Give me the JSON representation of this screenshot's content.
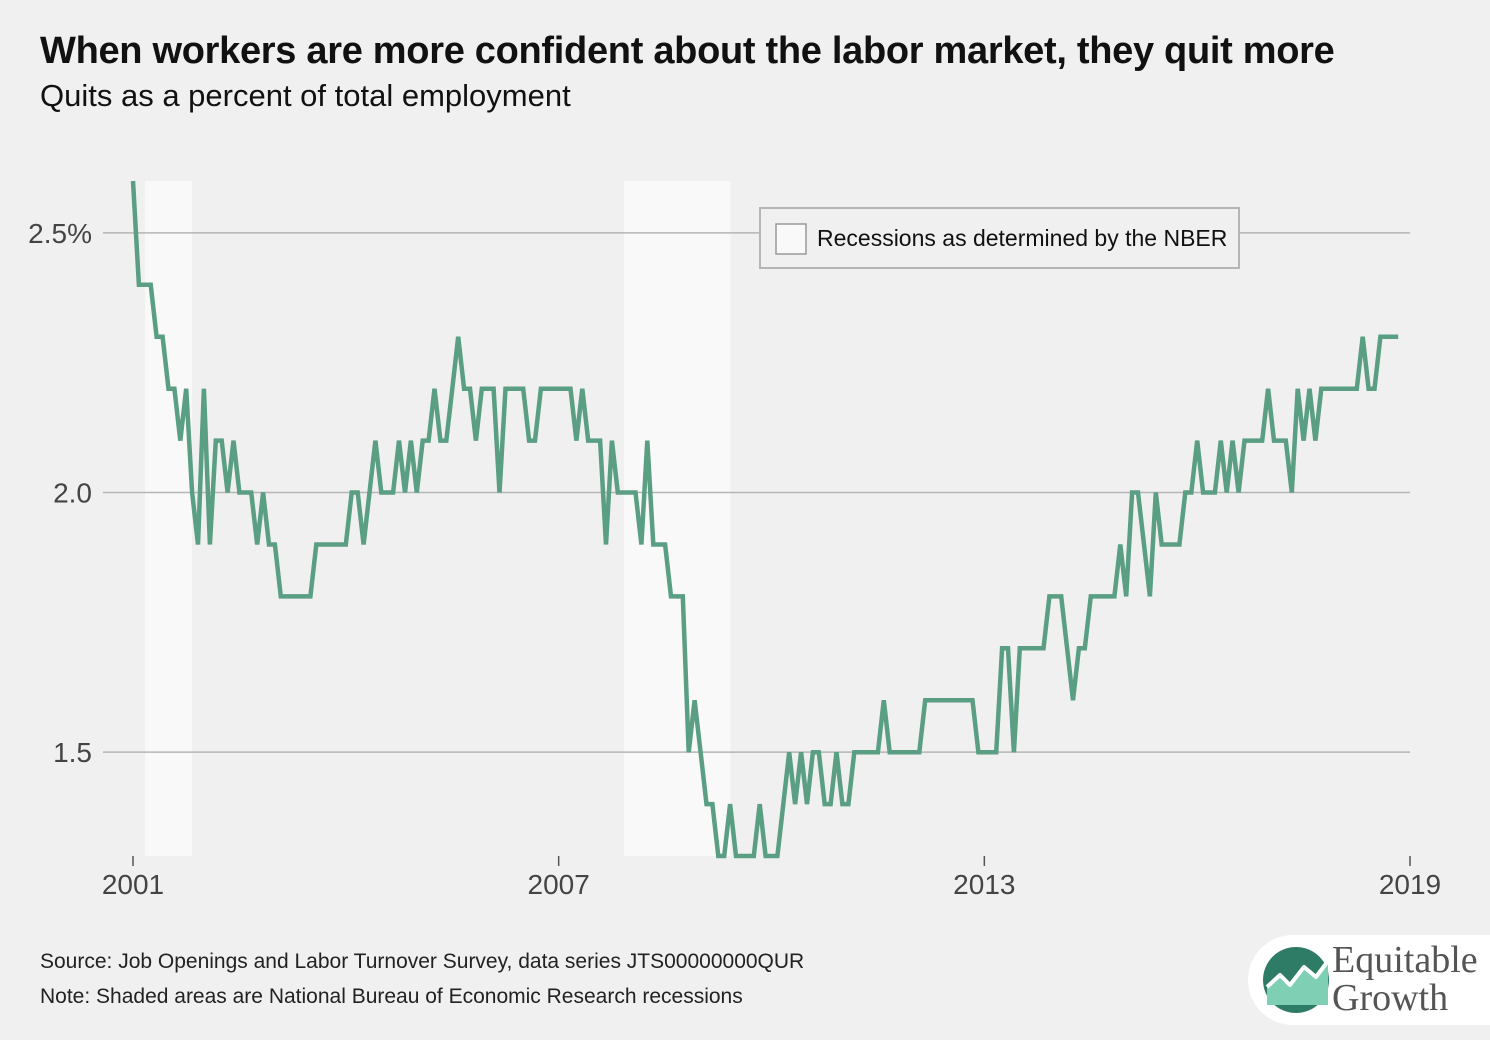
{
  "header": {
    "title": "When workers are more confident about the labor market, they quit more",
    "subtitle": "Quits as a percent of total employment"
  },
  "legend": {
    "label": "Recessions as determined by the NBER"
  },
  "footer": {
    "source": "Source: Job Openings and Labor Turnover Survey, data series JTS00000000QUR",
    "note": "Note: Shaded areas are National Bureau of Economic Research recessions"
  },
  "logo": {
    "line1": "Equitable",
    "line2": "Growth"
  },
  "colors": {
    "background": "#f0f0f0",
    "line": "#5a9e84",
    "recession": "#f9f9f9",
    "grid": "#b5b5b5",
    "logo_dark": "#2e7c66",
    "logo_light": "#7ecfb4"
  },
  "chart_data": {
    "type": "line",
    "title": "When workers are more confident about the labor market, they quit more",
    "subtitle": "Quits as a percent of total employment",
    "xlabel": "",
    "ylabel": "",
    "xlim": [
      2001.0,
      2019.0
    ],
    "ylim": [
      1.3,
      2.6
    ],
    "x_ticks": [
      2001,
      2007,
      2013,
      2019
    ],
    "x_tick_labels": [
      "2001",
      "2007",
      "2013",
      "2019"
    ],
    "y_ticks": [
      1.5,
      2.0,
      2.5
    ],
    "y_tick_labels": [
      "1.5",
      "2.0",
      "2.5%"
    ],
    "grid": true,
    "legend_position": "top-right",
    "recessions": [
      {
        "start": 2001.17,
        "end": 2001.83
      },
      {
        "start": 2007.92,
        "end": 2009.42
      }
    ],
    "series": [
      {
        "name": "",
        "start_year": 2001,
        "frequency": "monthly",
        "values": [
          2.6,
          2.4,
          2.4,
          2.4,
          2.3,
          2.3,
          2.2,
          2.2,
          2.1,
          2.2,
          2.0,
          1.9,
          2.2,
          1.9,
          2.1,
          2.1,
          2.0,
          2.1,
          2.0,
          2.0,
          2.0,
          1.9,
          2.0,
          1.9,
          1.9,
          1.8,
          1.8,
          1.8,
          1.8,
          1.8,
          1.8,
          1.9,
          1.9,
          1.9,
          1.9,
          1.9,
          1.9,
          2.0,
          2.0,
          1.9,
          2.0,
          2.1,
          2.0,
          2.0,
          2.0,
          2.1,
          2.0,
          2.1,
          2.0,
          2.1,
          2.1,
          2.2,
          2.1,
          2.1,
          2.2,
          2.3,
          2.2,
          2.2,
          2.1,
          2.2,
          2.2,
          2.2,
          2.0,
          2.2,
          2.2,
          2.2,
          2.2,
          2.1,
          2.1,
          2.2,
          2.2,
          2.2,
          2.2,
          2.2,
          2.2,
          2.1,
          2.2,
          2.1,
          2.1,
          2.1,
          1.9,
          2.1,
          2.0,
          2.0,
          2.0,
          2.0,
          1.9,
          2.1,
          1.9,
          1.9,
          1.9,
          1.8,
          1.8,
          1.8,
          1.5,
          1.6,
          1.5,
          1.4,
          1.4,
          1.3,
          1.3,
          1.4,
          1.3,
          1.3,
          1.3,
          1.3,
          1.4,
          1.3,
          1.3,
          1.3,
          1.4,
          1.5,
          1.4,
          1.5,
          1.4,
          1.5,
          1.5,
          1.4,
          1.4,
          1.5,
          1.4,
          1.4,
          1.5,
          1.5,
          1.5,
          1.5,
          1.5,
          1.6,
          1.5,
          1.5,
          1.5,
          1.5,
          1.5,
          1.5,
          1.6,
          1.6,
          1.6,
          1.6,
          1.6,
          1.6,
          1.6,
          1.6,
          1.6,
          1.5,
          1.5,
          1.5,
          1.5,
          1.7,
          1.7,
          1.5,
          1.7,
          1.7,
          1.7,
          1.7,
          1.7,
          1.8,
          1.8,
          1.8,
          1.7,
          1.6,
          1.7,
          1.7,
          1.8,
          1.8,
          1.8,
          1.8,
          1.8,
          1.9,
          1.8,
          2.0,
          2.0,
          1.9,
          1.8,
          2.0,
          1.9,
          1.9,
          1.9,
          1.9,
          2.0,
          2.0,
          2.1,
          2.0,
          2.0,
          2.0,
          2.1,
          2.0,
          2.1,
          2.0,
          2.1,
          2.1,
          2.1,
          2.1,
          2.2,
          2.1,
          2.1,
          2.1,
          2.0,
          2.2,
          2.1,
          2.2,
          2.1,
          2.2,
          2.2,
          2.2,
          2.2,
          2.2,
          2.2,
          2.2,
          2.3,
          2.2,
          2.2,
          2.3,
          2.3,
          2.3,
          2.3
        ]
      }
    ]
  }
}
